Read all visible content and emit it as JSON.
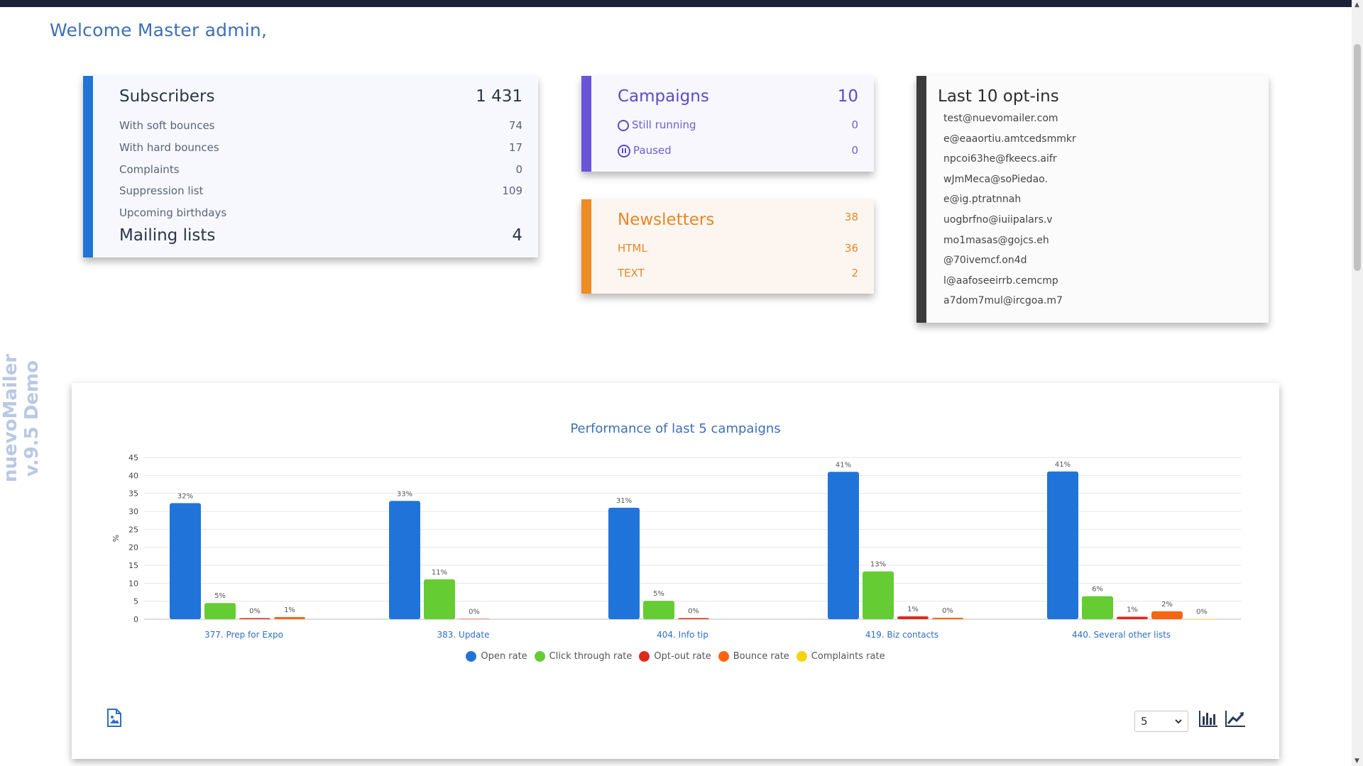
{
  "welcome": "Welcome  Master admin,",
  "sidebar_label": "nuevoMailer v.9.5 Demo",
  "subscribers": {
    "title": "Subscribers",
    "count": "1 431",
    "rows": [
      {
        "label": "With soft bounces",
        "value": "74"
      },
      {
        "label": "With hard bounces",
        "value": "17"
      },
      {
        "label": "Complaints",
        "value": "0"
      },
      {
        "label": "Suppression list",
        "value": "109"
      },
      {
        "label": "Upcoming birthdays",
        "value": ""
      }
    ],
    "mailing_lists_label": "Mailing lists",
    "mailing_lists_count": "4"
  },
  "campaigns": {
    "title": "Campaigns",
    "count": "10",
    "still_running_label": "Still running",
    "still_running_value": "0",
    "paused_label": "Paused",
    "paused_value": "0"
  },
  "newsletters": {
    "title": "Newsletters",
    "count": "38",
    "html_label": "HTML",
    "html_value": "36",
    "text_label": "TEXT",
    "text_value": "2"
  },
  "optins": {
    "title": "Last 10 opt-ins",
    "emails": [
      "test@nuevomailer.com",
      "e@eaaortiu.amtcedsmmkr",
      "npcoi63he@fkeecs.aifr",
      "wJmMeca@soPiedao.",
      "e@ig.ptratnnah",
      "uogbrfno@iuiipalars.v",
      "mo1masas@gojcs.eh",
      "@70ivemcf.on4d",
      "l@aafoseeirrb.cemcmp",
      "a7dom7mul@ircgoa.m7"
    ]
  },
  "chart_controls": {
    "selected_count": "5"
  },
  "colors": {
    "open": "#2074d9",
    "click": "#66cc33",
    "optout": "#dd2a1b",
    "bounce": "#fa6413",
    "complaints": "#f5d312"
  },
  "chart_data": {
    "type": "bar",
    "title": "Performance of last 5 campaigns",
    "ylabel": "%",
    "ylim": [
      0,
      45
    ],
    "yticks": [
      0,
      5,
      10,
      15,
      20,
      25,
      30,
      35,
      40,
      45
    ],
    "grid": true,
    "legend": "bottom",
    "categories": [
      "377. Prep for Expo",
      "383. Update",
      "404. Info tip",
      "419. Biz contacts",
      "440. Several other lists"
    ],
    "series": [
      {
        "name": "Open rate",
        "values": [
          32.3,
          32.9,
          31.0,
          41.0,
          41.1
        ],
        "labels": [
          "32%",
          "33%",
          "31%",
          "41%",
          "41%"
        ]
      },
      {
        "name": "Click through rate",
        "values": [
          4.5,
          11.1,
          5.1,
          13.3,
          6.4
        ],
        "labels": [
          "5%",
          "11%",
          "5%",
          "13%",
          "6%"
        ]
      },
      {
        "name": "Opt-out rate",
        "values": [
          0.3,
          0.1,
          0.3,
          0.8,
          0.7
        ],
        "labels": [
          "0%",
          "0%",
          "0%",
          "1%",
          "1%"
        ]
      },
      {
        "name": "Bounce rate",
        "values": [
          0.6,
          null,
          null,
          0.4,
          2.2
        ],
        "labels": [
          "1%",
          "",
          "",
          "0%",
          "2%"
        ]
      },
      {
        "name": "Complaints rate",
        "values": [
          null,
          null,
          null,
          null,
          0.1
        ],
        "labels": [
          "",
          "",
          "",
          "",
          "0%"
        ]
      }
    ]
  }
}
